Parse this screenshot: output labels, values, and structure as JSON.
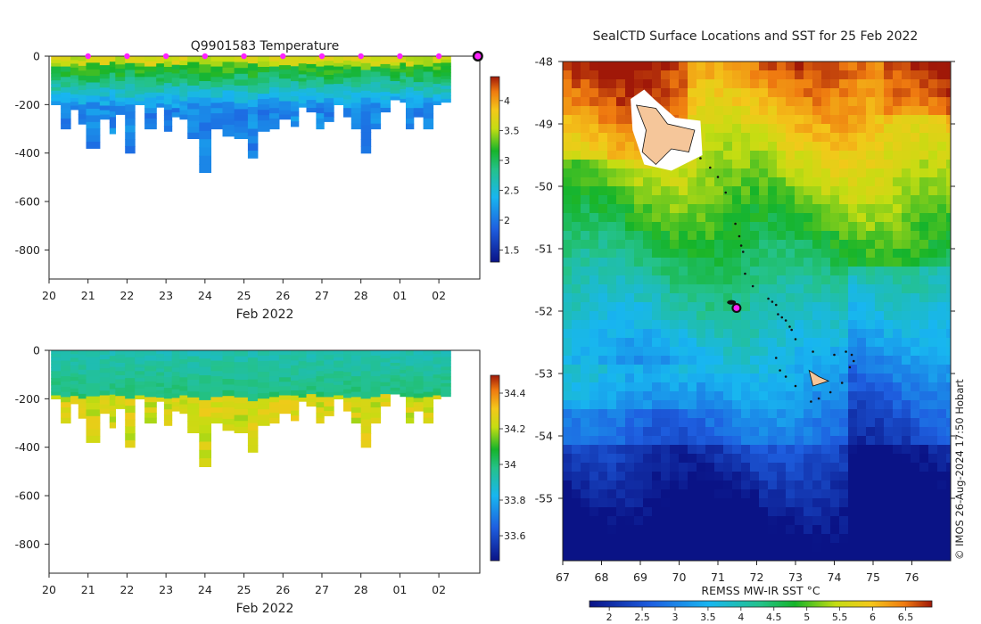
{
  "chart_data": [
    {
      "type": "heatmap",
      "title": "Q9901583  Temperature",
      "variable": "temperature",
      "xlabel": "Feb 2022",
      "x_ticks": [
        "20",
        "21",
        "22",
        "23",
        "24",
        "25",
        "26",
        "27",
        "28",
        "01",
        "02"
      ],
      "ylim": [
        -920,
        0
      ],
      "y_ticks": [
        0,
        -200,
        -400,
        -600,
        -800
      ],
      "colorbar": {
        "min": 1.3,
        "max": 4.4,
        "ticks": [
          1.5,
          2,
          2.5,
          3,
          3.5,
          4
        ]
      },
      "profile_markers_days": [
        21,
        22,
        23,
        24,
        25,
        26,
        27,
        28,
        29,
        30
      ],
      "current_marker_day": 31,
      "profile_depths": [
        {
          "day": 20.05,
          "depth": 200
        },
        {
          "day": 20.3,
          "depth": 300
        },
        {
          "day": 20.55,
          "depth": 220
        },
        {
          "day": 20.75,
          "depth": 280
        },
        {
          "day": 20.95,
          "depth": 380
        },
        {
          "day": 21.3,
          "depth": 260
        },
        {
          "day": 21.55,
          "depth": 320
        },
        {
          "day": 21.7,
          "depth": 240
        },
        {
          "day": 21.95,
          "depth": 400
        },
        {
          "day": 22.2,
          "depth": 200
        },
        {
          "day": 22.45,
          "depth": 300
        },
        {
          "day": 22.75,
          "depth": 210
        },
        {
          "day": 22.95,
          "depth": 310
        },
        {
          "day": 23.15,
          "depth": 250
        },
        {
          "day": 23.35,
          "depth": 260
        },
        {
          "day": 23.55,
          "depth": 340
        },
        {
          "day": 23.85,
          "depth": 480
        },
        {
          "day": 24.15,
          "depth": 300
        },
        {
          "day": 24.45,
          "depth": 330
        },
        {
          "day": 24.75,
          "depth": 340
        },
        {
          "day": 25.1,
          "depth": 420
        },
        {
          "day": 25.35,
          "depth": 310
        },
        {
          "day": 25.65,
          "depth": 300
        },
        {
          "day": 25.9,
          "depth": 260
        },
        {
          "day": 26.2,
          "depth": 290
        },
        {
          "day": 26.4,
          "depth": 210
        },
        {
          "day": 26.6,
          "depth": 230
        },
        {
          "day": 26.85,
          "depth": 300
        },
        {
          "day": 27.05,
          "depth": 270
        },
        {
          "day": 27.3,
          "depth": 200
        },
        {
          "day": 27.55,
          "depth": 250
        },
        {
          "day": 27.75,
          "depth": 300
        },
        {
          "day": 28.0,
          "depth": 400
        },
        {
          "day": 28.25,
          "depth": 300
        },
        {
          "day": 28.5,
          "depth": 230
        },
        {
          "day": 28.75,
          "depth": 180
        },
        {
          "day": 29.0,
          "depth": 190
        },
        {
          "day": 29.15,
          "depth": 300
        },
        {
          "day": 29.35,
          "depth": 250
        },
        {
          "day": 29.6,
          "depth": 300
        },
        {
          "day": 29.85,
          "depth": 200
        },
        {
          "day": 30.05,
          "depth": 190
        }
      ]
    },
    {
      "type": "heatmap",
      "title": "",
      "variable": "salinity",
      "xlabel": "Feb 2022",
      "x_ticks": [
        "20",
        "21",
        "22",
        "23",
        "24",
        "25",
        "26",
        "27",
        "28",
        "01",
        "02"
      ],
      "ylim": [
        -920,
        0
      ],
      "y_ticks": [
        0,
        -200,
        -400,
        -600,
        -800
      ],
      "colorbar": {
        "min": 33.46,
        "max": 34.5,
        "ticks": [
          33.6,
          33.8,
          34,
          34.2,
          34.4
        ]
      }
    },
    {
      "type": "heatmap",
      "title": "SealCTD Surface Locations and SST for 25 Feb 2022",
      "xlabel": "",
      "ylabel": "",
      "xlim": [
        67,
        77
      ],
      "ylim": [
        -56,
        -48
      ],
      "x_ticks": [
        67,
        68,
        69,
        70,
        71,
        72,
        73,
        74,
        75,
        76
      ],
      "y_ticks": [
        -48,
        -49,
        -50,
        -51,
        -52,
        -53,
        -54,
        -55
      ],
      "colorbar": {
        "label": "REMSS MW-IR SST °C",
        "min": 1.7,
        "max": 6.9,
        "ticks": [
          2,
          2.5,
          3,
          3.5,
          4,
          4.5,
          5,
          5.5,
          6,
          6.5
        ]
      },
      "track_points": [
        {
          "lon": 70.55,
          "lat": -49.55
        },
        {
          "lon": 70.8,
          "lat": -49.7
        },
        {
          "lon": 71.0,
          "lat": -49.85
        },
        {
          "lon": 71.2,
          "lat": -50.1
        },
        {
          "lon": 71.45,
          "lat": -50.6
        },
        {
          "lon": 71.55,
          "lat": -50.8
        },
        {
          "lon": 71.6,
          "lat": -50.95
        },
        {
          "lon": 71.65,
          "lat": -51.05
        },
        {
          "lon": 71.7,
          "lat": -51.4
        },
        {
          "lon": 71.9,
          "lat": -51.6
        },
        {
          "lon": 72.3,
          "lat": -51.8
        },
        {
          "lon": 72.4,
          "lat": -51.85
        },
        {
          "lon": 72.5,
          "lat": -51.9
        },
        {
          "lon": 72.55,
          "lat": -52.05
        },
        {
          "lon": 72.65,
          "lat": -52.1
        },
        {
          "lon": 72.75,
          "lat": -52.15
        },
        {
          "lon": 72.85,
          "lat": -52.25
        },
        {
          "lon": 72.9,
          "lat": -52.3
        },
        {
          "lon": 73.0,
          "lat": -52.45
        },
        {
          "lon": 72.5,
          "lat": -52.75
        },
        {
          "lon": 73.45,
          "lat": -52.65
        },
        {
          "lon": 74.0,
          "lat": -52.7
        },
        {
          "lon": 74.3,
          "lat": -52.65
        },
        {
          "lon": 74.45,
          "lat": -52.7
        },
        {
          "lon": 74.5,
          "lat": -52.8
        },
        {
          "lon": 74.4,
          "lat": -52.9
        },
        {
          "lon": 74.2,
          "lat": -53.15
        },
        {
          "lon": 73.9,
          "lat": -53.3
        },
        {
          "lon": 73.6,
          "lat": -53.4
        },
        {
          "lon": 73.4,
          "lat": -53.45
        },
        {
          "lon": 73.0,
          "lat": -53.2
        },
        {
          "lon": 72.75,
          "lat": -53.05
        },
        {
          "lon": 72.6,
          "lat": -52.95
        }
      ],
      "cluster": {
        "lon": 71.35,
        "lat": -51.86
      },
      "current_position": {
        "lon": 71.48,
        "lat": -51.95
      }
    }
  ],
  "credit": "© IMOS 26-Aug-2024 17:50 Hobart"
}
